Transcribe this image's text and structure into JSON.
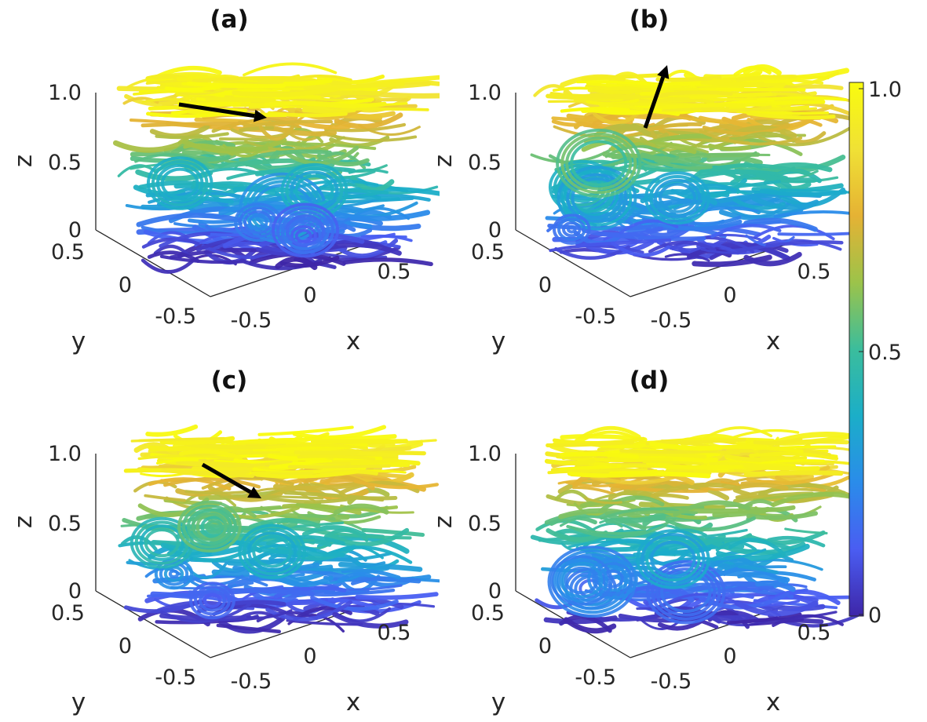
{
  "chart_data": {
    "type": "other",
    "description_kind": "3d-streamline-panels",
    "colormap": [
      "#3e26a8",
      "#4a5df2",
      "#2a8cea",
      "#1baec8",
      "#3bbd9c",
      "#9cc34a",
      "#e5b234",
      "#f0e135",
      "#f9fb0e"
    ],
    "colorbar": {
      "ticks": [
        "0",
        "0.5",
        "1.0"
      ],
      "range": [
        0,
        1.0
      ]
    },
    "axes": {
      "z_ticks": [
        "0",
        "0.5",
        "1.0"
      ],
      "y_ticks": [
        "0.5",
        "0",
        "-0.5"
      ],
      "x_ticks": [
        "-0.5",
        "0",
        "0.5"
      ],
      "xlabel": "x",
      "ylabel": "y",
      "zlabel": "z",
      "x_range": [
        -0.5,
        0.5
      ],
      "y_range": [
        -0.5,
        0.5
      ],
      "z_range": [
        0,
        1.0
      ]
    },
    "panels": [
      {
        "label": "(a)",
        "arrow": true
      },
      {
        "label": "(b)",
        "arrow": true
      },
      {
        "label": "(c)",
        "arrow": true
      },
      {
        "label": "(d)",
        "arrow": false
      }
    ]
  }
}
